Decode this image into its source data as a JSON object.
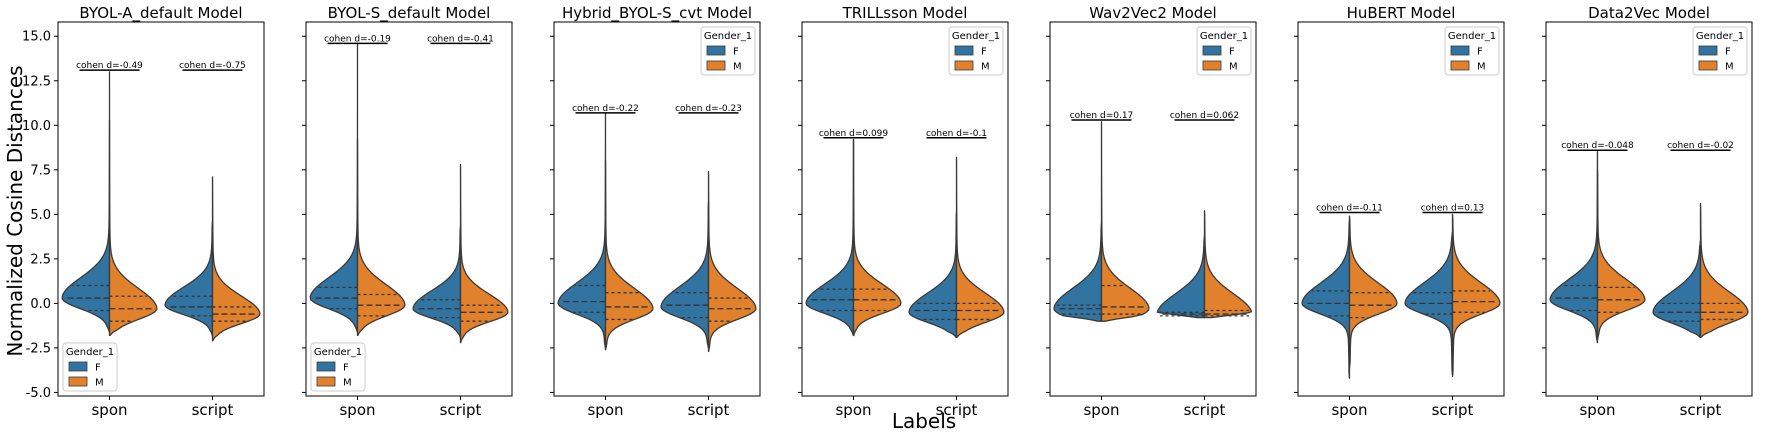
{
  "figure": {
    "ylabel": "Normalized Cosine Distances",
    "xlabel": "Labels"
  },
  "legend": {
    "title": "Gender_1",
    "entries": [
      {
        "label": "F",
        "color": "#3274a1"
      },
      {
        "label": "M",
        "color": "#e1812c"
      }
    ]
  },
  "chart_data": [
    {
      "type": "violin",
      "title": "BYOL-A_default Model",
      "categories": [
        "spon",
        "script"
      ],
      "ylim": [
        -5.2,
        15.8
      ],
      "yticks": [
        "-5.0",
        "-2.5",
        "0.0",
        "2.5",
        "5.0",
        "7.5",
        "10.0",
        "12.5",
        "15.0"
      ],
      "show_ytick_labels": true,
      "legend_position": "lower-left",
      "groups": [
        {
          "category": "spon",
          "annotation": "cohen d=-0.49",
          "bracket_y": 13.1,
          "F": {
            "min": -1.6,
            "max": 10.3,
            "q1": -0.4,
            "median": 0.3,
            "q3": 1.0,
            "mode": 0.3,
            "spread": 0.85
          },
          "M": {
            "min": -1.8,
            "max": 13.0,
            "q1": -1.0,
            "median": -0.3,
            "q3": 0.4,
            "mode": -0.3,
            "spread": 0.85
          }
        },
        {
          "category": "script",
          "annotation": "cohen d=-0.75",
          "bracket_y": 13.1,
          "F": {
            "min": -1.8,
            "max": 4.6,
            "q1": -0.7,
            "median": -0.2,
            "q3": 0.4,
            "mode": -0.1,
            "spread": 0.75
          },
          "M": {
            "min": -2.1,
            "max": 7.1,
            "q1": -1.0,
            "median": -0.6,
            "q3": -0.2,
            "mode": -0.6,
            "spread": 0.75
          }
        }
      ]
    },
    {
      "type": "violin",
      "title": "BYOL-S_default Model",
      "categories": [
        "spon",
        "script"
      ],
      "ylim": [
        -5.2,
        15.8
      ],
      "yticks": [
        "-5.0",
        "-2.5",
        "0.0",
        "2.5",
        "5.0",
        "7.5",
        "10.0",
        "12.5",
        "15.0"
      ],
      "show_ytick_labels": false,
      "legend_position": "lower-left",
      "groups": [
        {
          "category": "spon",
          "annotation": "cohen d=-0.19",
          "bracket_y": 14.6,
          "F": {
            "min": -1.6,
            "max": 14.6,
            "q1": -0.3,
            "median": 0.3,
            "q3": 0.9,
            "mode": 0.3,
            "spread": 0.85
          },
          "M": {
            "min": -1.8,
            "max": 9.2,
            "q1": -0.7,
            "median": -0.1,
            "q3": 0.5,
            "mode": -0.1,
            "spread": 0.85
          }
        },
        {
          "category": "script",
          "annotation": "cohen d=-0.41",
          "bracket_y": 14.6,
          "F": {
            "min": -1.9,
            "max": 4.3,
            "q1": -0.8,
            "median": -0.3,
            "q3": 0.2,
            "mode": -0.3,
            "spread": 0.75
          },
          "M": {
            "min": -2.2,
            "max": 7.8,
            "q1": -1.0,
            "median": -0.5,
            "q3": -0.1,
            "mode": -0.5,
            "spread": 0.75
          }
        }
      ]
    },
    {
      "type": "violin",
      "title": "Hybrid_BYOL-S_cvt Model",
      "categories": [
        "spon",
        "script"
      ],
      "ylim": [
        -5.2,
        15.8
      ],
      "yticks": [
        "-5.0",
        "-2.5",
        "0.0",
        "2.5",
        "5.0",
        "7.5",
        "10.0",
        "12.5",
        "15.0"
      ],
      "show_ytick_labels": false,
      "legend_position": "upper-right",
      "groups": [
        {
          "category": "spon",
          "annotation": "cohen d=-0.22",
          "bracket_y": 10.7,
          "F": {
            "min": -2.5,
            "max": 10.7,
            "q1": -0.5,
            "median": 0.1,
            "q3": 1.0,
            "mode": 0.0,
            "spread": 0.85
          },
          "M": {
            "min": -2.6,
            "max": 8.0,
            "q1": -0.9,
            "median": -0.2,
            "q3": 0.6,
            "mode": -0.3,
            "spread": 0.85
          }
        },
        {
          "category": "script",
          "annotation": "cohen d=-0.23",
          "bracket_y": 10.7,
          "F": {
            "min": -2.5,
            "max": 5.7,
            "q1": -0.8,
            "median": -0.1,
            "q3": 0.6,
            "mode": -0.2,
            "spread": 0.85
          },
          "M": {
            "min": -2.7,
            "max": 7.4,
            "q1": -1.0,
            "median": -0.3,
            "q3": 0.3,
            "mode": -0.3,
            "spread": 0.85
          }
        }
      ]
    },
    {
      "type": "violin",
      "title": "TRILLsson Model",
      "categories": [
        "spon",
        "script"
      ],
      "ylim": [
        -5.2,
        15.8
      ],
      "yticks": [
        "-5.0",
        "-2.5",
        "0.0",
        "2.5",
        "5.0",
        "7.5",
        "10.0",
        "12.5",
        "15.0"
      ],
      "show_ytick_labels": false,
      "legend_position": "upper-right",
      "groups": [
        {
          "category": "spon",
          "annotation": "cohen d=0.099",
          "bracket_y": 9.3,
          "F": {
            "min": -1.8,
            "max": 9.2,
            "q1": -0.4,
            "median": 0.2,
            "q3": 0.8,
            "mode": 0.0,
            "spread": 0.8
          },
          "M": {
            "min": -1.8,
            "max": 9.2,
            "q1": -0.4,
            "median": 0.2,
            "q3": 0.8,
            "mode": 0.0,
            "spread": 0.8
          }
        },
        {
          "category": "script",
          "annotation": "cohen d=-0.1",
          "bracket_y": 9.3,
          "F": {
            "min": -1.9,
            "max": 5.1,
            "q1": -0.9,
            "median": -0.4,
            "q3": 0.0,
            "mode": -0.5,
            "spread": 0.8
          },
          "M": {
            "min": -1.9,
            "max": 8.2,
            "q1": -0.9,
            "median": -0.4,
            "q3": 0.0,
            "mode": -0.5,
            "spread": 0.8
          }
        }
      ]
    },
    {
      "type": "violin",
      "title": "Wav2Vec2 Model",
      "categories": [
        "spon",
        "script"
      ],
      "ylim": [
        -5.2,
        15.8
      ],
      "yticks": [
        "-5.0",
        "-2.5",
        "0.0",
        "2.5",
        "5.0",
        "7.5",
        "10.0",
        "12.5",
        "15.0"
      ],
      "show_ytick_labels": false,
      "legend_position": "upper-right",
      "groups": [
        {
          "category": "spon",
          "annotation": "cohen d=0.17",
          "bracket_y": 10.3,
          "F": {
            "min": -1.0,
            "max": 4.5,
            "q1": -0.6,
            "median": -0.3,
            "q3": -0.1,
            "mode": -0.3,
            "spread": 0.85
          },
          "M": {
            "min": -1.0,
            "max": 10.2,
            "q1": -0.6,
            "median": -0.2,
            "q3": 1.0,
            "mode": -0.3,
            "spread": 0.85
          }
        },
        {
          "category": "script",
          "annotation": "cohen d=0.062",
          "bracket_y": 10.3,
          "F": {
            "min": -0.8,
            "max": 3.8,
            "q1": -0.7,
            "median": -0.6,
            "q3": -0.5,
            "mode": -0.6,
            "spread": 0.85
          },
          "M": {
            "min": -0.8,
            "max": 5.2,
            "q1": -0.7,
            "median": -0.6,
            "q3": -0.4,
            "mode": -0.6,
            "spread": 0.85
          }
        }
      ]
    },
    {
      "type": "violin",
      "title": "HuBERT Model",
      "categories": [
        "spon",
        "script"
      ],
      "ylim": [
        -5.2,
        15.8
      ],
      "yticks": [
        "-5.0",
        "-2.5",
        "0.0",
        "2.5",
        "5.0",
        "7.5",
        "10.0",
        "12.5",
        "15.0"
      ],
      "show_ytick_labels": false,
      "legend_position": "upper-right",
      "groups": [
        {
          "category": "spon",
          "annotation": "cohen d=-0.11",
          "bracket_y": 5.1,
          "F": {
            "min": -4.2,
            "max": 4.7,
            "q1": -0.7,
            "median": 0.0,
            "q3": 0.7,
            "mode": 0.0,
            "spread": 0.85
          },
          "M": {
            "min": -3.6,
            "max": 4.9,
            "q1": -0.8,
            "median": -0.1,
            "q3": 0.6,
            "mode": 0.0,
            "spread": 0.85
          }
        },
        {
          "category": "script",
          "annotation": "cohen d=0.13",
          "bracket_y": 5.1,
          "F": {
            "min": -4.0,
            "max": 4.0,
            "q1": -0.6,
            "median": 0.0,
            "q3": 0.6,
            "mode": 0.0,
            "spread": 0.85
          },
          "M": {
            "min": -4.1,
            "max": 5.0,
            "q1": -0.5,
            "median": 0.1,
            "q3": 0.7,
            "mode": 0.0,
            "spread": 0.85
          }
        }
      ]
    },
    {
      "type": "violin",
      "title": "Data2Vec Model",
      "categories": [
        "spon",
        "script"
      ],
      "ylim": [
        -5.2,
        15.8
      ],
      "yticks": [
        "-5.0",
        "-2.5",
        "0.0",
        "2.5",
        "5.0",
        "7.5",
        "10.0",
        "12.5",
        "15.0"
      ],
      "show_ytick_labels": false,
      "legend_position": "upper-right",
      "groups": [
        {
          "category": "spon",
          "annotation": "cohen d=-0.048",
          "bracket_y": 8.6,
          "F": {
            "min": -2.2,
            "max": 8.6,
            "q1": -0.4,
            "median": 0.3,
            "q3": 1.0,
            "mode": 0.2,
            "spread": 0.85
          },
          "M": {
            "min": -2.0,
            "max": 7.5,
            "q1": -0.5,
            "median": 0.2,
            "q3": 0.9,
            "mode": 0.2,
            "spread": 0.85
          }
        },
        {
          "category": "script",
          "annotation": "cohen d=-0.02",
          "bracket_y": 8.6,
          "F": {
            "min": -1.9,
            "max": 3.5,
            "q1": -1.0,
            "median": -0.5,
            "q3": 0.0,
            "mode": -0.5,
            "spread": 0.85
          },
          "M": {
            "min": -1.9,
            "max": 5.6,
            "q1": -0.9,
            "median": -0.5,
            "q3": 0.0,
            "mode": -0.5,
            "spread": 0.85
          }
        }
      ]
    }
  ]
}
